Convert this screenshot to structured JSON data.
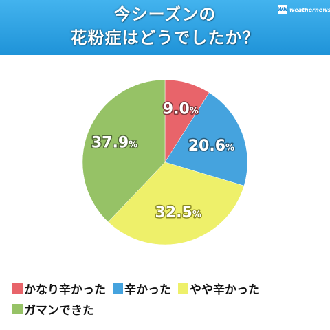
{
  "header": {
    "title_line1": "今シーズンの",
    "title_line2": "花粉症はどうでしたか？",
    "brand_mark": "WN",
    "brand_name": "weathernews",
    "bg_top": "#43b3ee",
    "bg_bottom": "#1f93d8"
  },
  "chart_data": {
    "type": "pie",
    "title": "今シーズンの花粉症はどうでしたか？",
    "unit": "%",
    "start_angle": "12 o'clock",
    "direction": "clockwise",
    "slices": [
      {
        "label": "かなり辛かった",
        "value": 9.0,
        "display": "9.0",
        "color": "#e8646a"
      },
      {
        "label": "辛かった",
        "value": 20.6,
        "display": "20.6",
        "color": "#45a3de"
      },
      {
        "label": "やや辛かった",
        "value": 32.5,
        "display": "32.5",
        "color": "#eef06a"
      },
      {
        "label": "ガマンできた",
        "value": 37.9,
        "display": "37.9",
        "color": "#96c266"
      }
    ]
  },
  "legend": {
    "items": [
      "かなり辛かった",
      "辛かった",
      "やや辛かった",
      "ガマンできた"
    ]
  }
}
